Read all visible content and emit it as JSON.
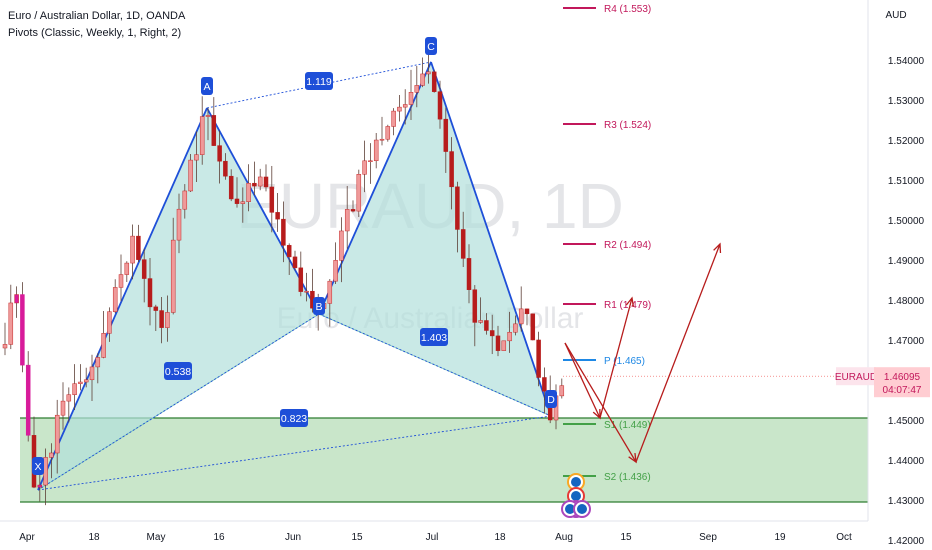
{
  "header": {
    "title": "Euro / Australian Dollar, 1D, OANDA",
    "indicator": "Pivots (Classic, Weekly, 1, Right, 2)"
  },
  "watermark": {
    "symbol": "EURAUD, 1D",
    "name": "Euro / Australian Dollar"
  },
  "chart_data": {
    "type": "candlestick",
    "currency_label": "AUD",
    "ylim": [
      1.414,
      1.558
    ],
    "y_ticks": [
      "1.42000",
      "1.43000",
      "1.44000",
      "1.45000",
      "1.46000",
      "1.47000",
      "1.48000",
      "1.49000",
      "1.50000",
      "1.51000",
      "1.52000",
      "1.53000",
      "1.54000"
    ],
    "x_ticks": [
      "Apr",
      "18",
      "May",
      "16",
      "Jun",
      "15",
      "Jul",
      "18",
      "Aug",
      "15",
      "Sep",
      "19",
      "Oct"
    ],
    "price_badge": {
      "symbol": "EURAUD",
      "price": "1.46095",
      "countdown": "04:07:47",
      "value": 1.46095
    },
    "pivots": [
      {
        "label": "R4 (1.553)",
        "value": 1.553
      },
      {
        "label": "R3 (1.524)",
        "value": 1.524
      },
      {
        "label": "R2 (1.494)",
        "value": 1.494
      },
      {
        "label": "R1 (1.479)",
        "value": 1.479
      },
      {
        "label": "P (1.465)",
        "value": 1.465
      },
      {
        "label": "S1 (1.449)",
        "value": 1.449
      },
      {
        "label": "S2 (1.436)",
        "value": 1.436
      }
    ],
    "pattern_points": [
      {
        "label": "X",
        "value": 1.4325
      },
      {
        "label": "A",
        "value": 1.528
      },
      {
        "label": "B",
        "value": 1.4765
      },
      {
        "label": "C",
        "value": 1.5395
      },
      {
        "label": "D",
        "value": 1.451
      }
    ],
    "ratios": [
      "1.119",
      "0.538",
      "1.403",
      "0.823"
    ],
    "support_zone": [
      1.4295,
      1.4505
    ],
    "colors": {
      "up": "#ef9a9a",
      "down": "#b71c1c",
      "magenta": "#d81b9a",
      "pattern_fill": "#b2dfdb",
      "pattern_line": "#1e4fd8",
      "zone": "#a5d6a7",
      "zone_border": "#2e7d32",
      "arrow": "#b71c1c",
      "pivot_r": "#c2185b",
      "pivot_p": "#1e88e5",
      "pivot_s": "#43a047"
    }
  }
}
